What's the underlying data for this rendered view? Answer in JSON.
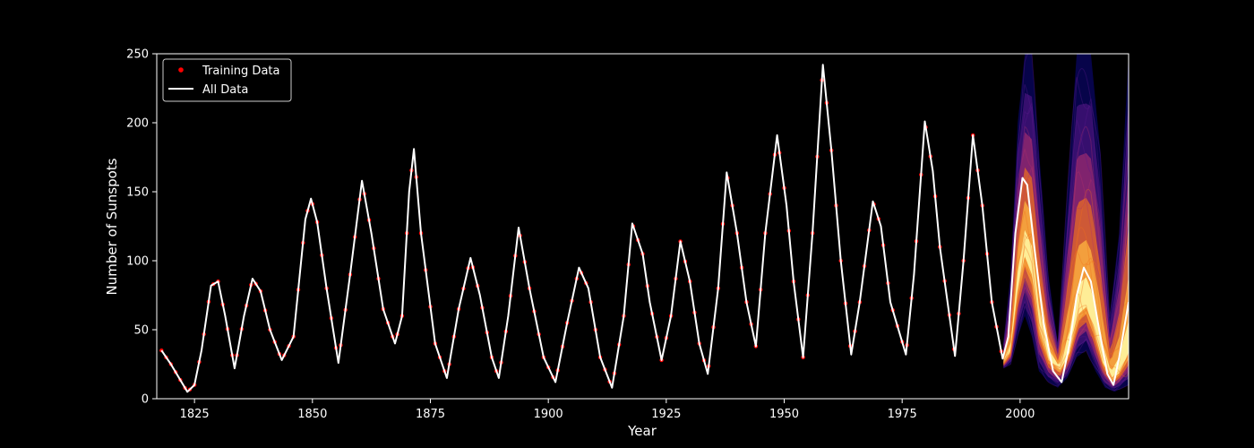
{
  "chart_data": {
    "type": "line",
    "title": "",
    "xlabel": "Year",
    "ylabel": "Number of Sunspots",
    "xlim": [
      1817,
      2023
    ],
    "ylim": [
      0,
      250
    ],
    "x_ticks": [
      1825,
      1850,
      1875,
      1900,
      1925,
      1950,
      1975,
      2000
    ],
    "y_ticks": [
      0,
      50,
      100,
      150,
      200,
      250
    ],
    "grid": false,
    "legend_position": "top-left",
    "series": [
      {
        "name": "Training Data",
        "style": "markers",
        "color": "#ff0000",
        "x_range": [
          1818,
          1996
        ]
      },
      {
        "name": "All Data",
        "style": "line",
        "color": "#ffffff",
        "points": [
          [
            1818,
            35
          ],
          [
            1820,
            25
          ],
          [
            1823.5,
            5
          ],
          [
            1825,
            10
          ],
          [
            1826.5,
            35
          ],
          [
            1828.5,
            82
          ],
          [
            1830,
            85
          ],
          [
            1831.5,
            60
          ],
          [
            1833.5,
            22
          ],
          [
            1835.5,
            60
          ],
          [
            1837.3,
            87
          ],
          [
            1839,
            78
          ],
          [
            1841,
            50
          ],
          [
            1843.5,
            28
          ],
          [
            1846,
            45
          ],
          [
            1848.5,
            130
          ],
          [
            1849.7,
            145
          ],
          [
            1851,
            128
          ],
          [
            1853,
            80
          ],
          [
            1855.5,
            26
          ],
          [
            1858,
            90
          ],
          [
            1860.5,
            158
          ],
          [
            1862.5,
            120
          ],
          [
            1865,
            65
          ],
          [
            1867.5,
            40
          ],
          [
            1869,
            60
          ],
          [
            1870.5,
            150
          ],
          [
            1871.5,
            181
          ],
          [
            1873,
            120
          ],
          [
            1876,
            40
          ],
          [
            1878.5,
            15
          ],
          [
            1881,
            65
          ],
          [
            1883.5,
            102
          ],
          [
            1885.5,
            75
          ],
          [
            1888,
            30
          ],
          [
            1889.5,
            15
          ],
          [
            1891.5,
            60
          ],
          [
            1893.7,
            124
          ],
          [
            1896,
            80
          ],
          [
            1899,
            30
          ],
          [
            1901.5,
            12
          ],
          [
            1904,
            55
          ],
          [
            1906.5,
            95
          ],
          [
            1908.5,
            80
          ],
          [
            1911,
            30
          ],
          [
            1913.5,
            8
          ],
          [
            1916,
            60
          ],
          [
            1917.8,
            127
          ],
          [
            1920,
            105
          ],
          [
            1921.5,
            70
          ],
          [
            1924,
            28
          ],
          [
            1926,
            60
          ],
          [
            1928,
            114
          ],
          [
            1930,
            85
          ],
          [
            1932,
            40
          ],
          [
            1933.8,
            18
          ],
          [
            1936,
            80
          ],
          [
            1937.8,
            164
          ],
          [
            1940,
            120
          ],
          [
            1942,
            70
          ],
          [
            1944,
            38
          ],
          [
            1946,
            120
          ],
          [
            1948.5,
            191
          ],
          [
            1950.5,
            140
          ],
          [
            1952,
            85
          ],
          [
            1954,
            30
          ],
          [
            1956,
            120
          ],
          [
            1958.2,
            242
          ],
          [
            1960,
            180
          ],
          [
            1962,
            100
          ],
          [
            1964.2,
            32
          ],
          [
            1966,
            70
          ],
          [
            1968.8,
            143
          ],
          [
            1970.5,
            125
          ],
          [
            1972.5,
            70
          ],
          [
            1975.8,
            32
          ],
          [
            1977.5,
            90
          ],
          [
            1979.8,
            201
          ],
          [
            1981.5,
            165
          ],
          [
            1983,
            110
          ],
          [
            1986.2,
            31
          ],
          [
            1988,
            100
          ],
          [
            1990,
            191
          ],
          [
            1992,
            140
          ],
          [
            1994,
            70
          ],
          [
            1996.3,
            29
          ],
          [
            1997.5,
            45
          ],
          [
            1999,
            120
          ],
          [
            2000.5,
            160
          ],
          [
            2001.5,
            155
          ],
          [
            2003,
            110
          ],
          [
            2005,
            55
          ],
          [
            2007,
            20
          ],
          [
            2008.8,
            12
          ],
          [
            2010.5,
            40
          ],
          [
            2012,
            75
          ],
          [
            2013.5,
            95
          ],
          [
            2015,
            85
          ],
          [
            2016.5,
            55
          ],
          [
            2018.5,
            18
          ],
          [
            2019.8,
            10
          ],
          [
            2021,
            30
          ],
          [
            2023,
            70
          ]
        ]
      }
    ],
    "forecast_samples": {
      "x_start": 1996.5,
      "colormap": [
        "#0d0887",
        "#5c1a8c",
        "#b3306e",
        "#f0701e",
        "#fcb040",
        "#fff5a0"
      ],
      "median": [
        [
          1996.5,
          26
        ],
        [
          1998,
          35
        ],
        [
          1999.5,
          80
        ],
        [
          2001,
          108
        ],
        [
          2002.5,
          95
        ],
        [
          2004,
          55
        ],
        [
          2006,
          30
        ],
        [
          2008.5,
          22
        ],
        [
          2010.5,
          35
        ],
        [
          2012.5,
          65
        ],
        [
          2014,
          70
        ],
        [
          2015.5,
          55
        ],
        [
          2017.5,
          28
        ],
        [
          2019.5,
          15
        ],
        [
          2021,
          20
        ],
        [
          2023,
          35
        ]
      ],
      "upper_envelope": [
        [
          1996.5,
          40
        ],
        [
          1998,
          90
        ],
        [
          1999.5,
          200
        ],
        [
          2001,
          250
        ],
        [
          2002.5,
          250
        ],
        [
          2004,
          180
        ],
        [
          2006,
          90
        ],
        [
          2008,
          40
        ],
        [
          2010,
          150
        ],
        [
          2012,
          250
        ],
        [
          2015,
          250
        ],
        [
          2017,
          180
        ],
        [
          2019,
          60
        ],
        [
          2021,
          120
        ],
        [
          2023,
          250
        ]
      ],
      "lower_envelope": [
        [
          1996.5,
          22
        ],
        [
          1998,
          25
        ],
        [
          1999.5,
          45
        ],
        [
          2001,
          60
        ],
        [
          2002.5,
          45
        ],
        [
          2004,
          20
        ],
        [
          2006,
          12
        ],
        [
          2008,
          8
        ],
        [
          2010,
          15
        ],
        [
          2012,
          30
        ],
        [
          2014,
          35
        ],
        [
          2016,
          20
        ],
        [
          2018,
          8
        ],
        [
          2020,
          5
        ],
        [
          2023,
          10
        ]
      ]
    }
  }
}
